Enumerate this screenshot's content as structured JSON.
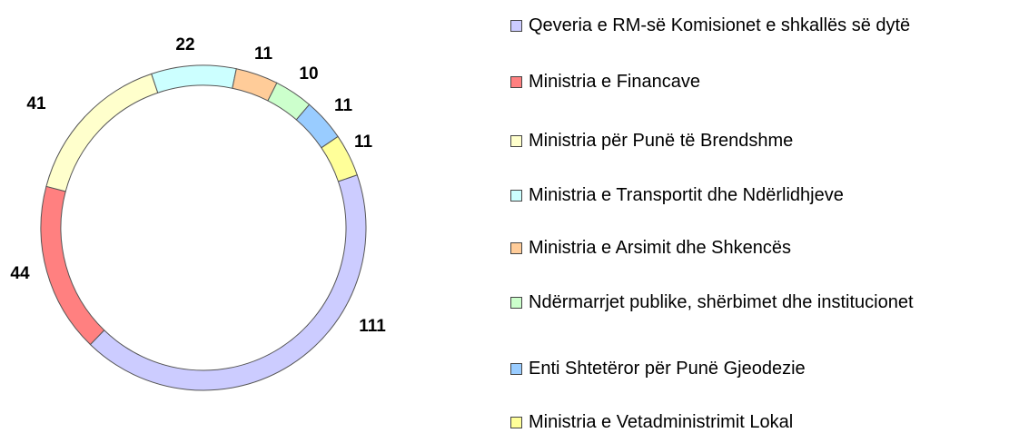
{
  "chart_data": {
    "type": "donut",
    "categories": [
      "Qeveria e RM-së Komisionet e shkallës së dytë",
      "Ministria e Financave",
      "Ministria për Punë të Brendshme",
      "Ministria e Transportit dhe Ndërlidhjeve",
      "Ministria e Arsimit dhe Shkencës",
      "Ndërmarrjet publike, shërbimet dhe institucionet",
      "Enti Shtetëror për Punë Gjeodezie",
      "Ministria e Vetadministrimit Lokal"
    ],
    "values": [
      111,
      44,
      41,
      22,
      11,
      10,
      11,
      11
    ],
    "colors": [
      "#ccccff",
      "#ff8080",
      "#ffffcc",
      "#ccffff",
      "#ffcc99",
      "#ccffcc",
      "#99ccff",
      "#ffff99"
    ],
    "legend": "right"
  }
}
